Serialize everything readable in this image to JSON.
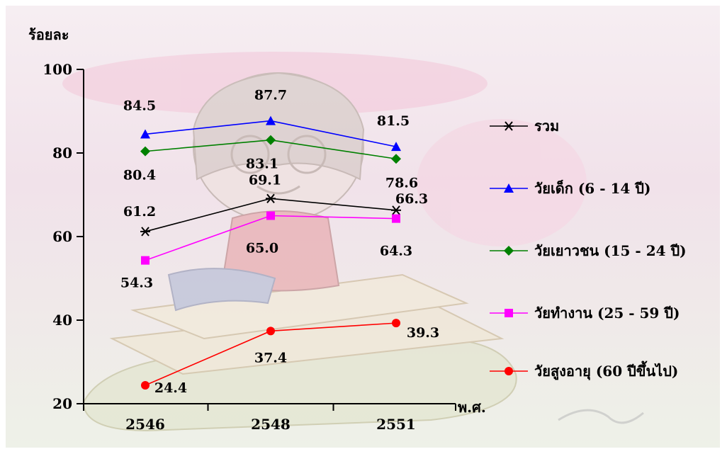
{
  "chart_data": {
    "type": "line",
    "ylabel": "ร้อยละ",
    "xlabel": "พ.ศ.",
    "categories": [
      "2546",
      "2548",
      "2551"
    ],
    "ylim": [
      20,
      100
    ],
    "yticks": [
      "20",
      "40",
      "60",
      "80",
      "100"
    ],
    "legend_position": "right",
    "series": [
      {
        "name": "รวม",
        "values": [
          61.2,
          69.1,
          66.3
        ],
        "labels": [
          "61.2",
          "69.1",
          "66.3"
        ],
        "color": "#000000",
        "marker": "asterisk"
      },
      {
        "name": "วัยเด็ก (6 - 14 ปี)",
        "values": [
          84.5,
          87.7,
          81.5
        ],
        "labels": [
          "84.5",
          "87.7",
          "81.5"
        ],
        "color": "#0000ff",
        "marker": "triangle"
      },
      {
        "name": "วัยเยาวชน (15 - 24 ปี)",
        "values": [
          80.4,
          83.1,
          78.6
        ],
        "labels": [
          "80.4",
          "83.1",
          "78.6"
        ],
        "color": "#008000",
        "marker": "diamond"
      },
      {
        "name": "วัยทำงาน (25 - 59 ปี)",
        "values": [
          54.3,
          65.0,
          64.3
        ],
        "labels": [
          "54.3",
          "65.0",
          "64.3"
        ],
        "color": "#ff00ff",
        "marker": "square"
      },
      {
        "name": "วัยสูงอายุ  (60 ปีขึ้นไป)",
        "values": [
          24.4,
          37.4,
          39.3
        ],
        "labels": [
          "24.4",
          "37.4",
          "39.3"
        ],
        "color": "#ff0000",
        "marker": "circle"
      }
    ]
  }
}
